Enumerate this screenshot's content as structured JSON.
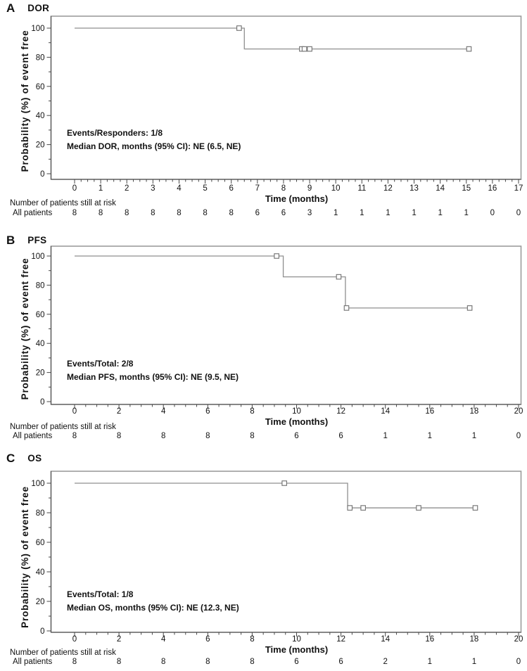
{
  "figure_title": "Kaplan-Meier plots",
  "colors": {
    "curve": "#8f8f8f",
    "censor_stroke": "#6f6f6f",
    "censor_fill": "#ffffff",
    "frame": "#9c9c9c",
    "axis": "#4a4a4a",
    "text": "#111111",
    "background": "#ffffff"
  },
  "chart_data": [
    {
      "type": "line",
      "subtype": "kaplan-meier-step",
      "panel_letter": "A",
      "panel_label": "DOR",
      "xlabel": "Time (months)",
      "ylabel": "Probability (%) of event free",
      "xlim": [
        0,
        17
      ],
      "ylim": [
        0,
        100
      ],
      "xticks": [
        0,
        1,
        2,
        3,
        4,
        5,
        6,
        7,
        8,
        9,
        10,
        11,
        12,
        13,
        14,
        15,
        16,
        17
      ],
      "x_minor_step": 0.25,
      "yticks": [
        0,
        20,
        40,
        60,
        80,
        100
      ],
      "y_minor_step": 10,
      "grid": false,
      "legend": "none",
      "series": [
        {
          "name": "All patients",
          "steps": [
            [
              0,
              100
            ],
            [
              6.5,
              100
            ],
            [
              6.5,
              85.7
            ],
            [
              15.1,
              85.7
            ]
          ],
          "censor_marks": [
            [
              6.3,
              100
            ],
            [
              8.7,
              85.7
            ],
            [
              8.8,
              85.7
            ],
            [
              9.0,
              85.7
            ],
            [
              15.1,
              85.7
            ]
          ]
        }
      ],
      "annotation_lines": [
        "Events/Responders: 1/8",
        "Median DOR, months (95% CI): NE (6.5, NE)"
      ],
      "risk_table": {
        "title": "Number of patients still at risk",
        "row_label": "All patients",
        "times": [
          0,
          1,
          2,
          3,
          4,
          5,
          6,
          7,
          8,
          9,
          10,
          11,
          12,
          13,
          14,
          15,
          16,
          17
        ],
        "values": [
          "8",
          "8",
          "8",
          "8",
          "8",
          "8",
          "8",
          "6",
          "6",
          "3",
          "1",
          "1",
          "1",
          "1",
          "1",
          "1",
          "0",
          "0"
        ]
      }
    },
    {
      "type": "line",
      "subtype": "kaplan-meier-step",
      "panel_letter": "B",
      "panel_label": "PFS",
      "xlabel": "Time (months)",
      "ylabel": "Probability (%) of event free",
      "xlim": [
        0,
        20
      ],
      "ylim": [
        0,
        100
      ],
      "xticks": [
        0,
        2,
        4,
        6,
        8,
        10,
        12,
        14,
        16,
        18,
        20
      ],
      "x_minor_step": 0.5,
      "yticks": [
        0,
        20,
        40,
        60,
        80,
        100
      ],
      "y_minor_step": 10,
      "grid": false,
      "legend": "none",
      "series": [
        {
          "name": "All patients",
          "steps": [
            [
              0,
              100
            ],
            [
              9.4,
              100
            ],
            [
              9.4,
              85.7
            ],
            [
              12.2,
              85.7
            ],
            [
              12.2,
              64.3
            ],
            [
              17.8,
              64.3
            ]
          ],
          "censor_marks": [
            [
              9.1,
              100
            ],
            [
              11.9,
              85.7
            ],
            [
              12.25,
              64.3
            ],
            [
              17.8,
              64.3
            ]
          ]
        }
      ],
      "annotation_lines": [
        "Events/Total: 2/8",
        "Median PFS, months (95% CI): NE (9.5, NE)"
      ],
      "risk_table": {
        "title": "Number of patients still at risk",
        "row_label": "All patients",
        "times": [
          0,
          2,
          4,
          6,
          8,
          10,
          12,
          14,
          16,
          18,
          20
        ],
        "values": [
          "8",
          "8",
          "8",
          "8",
          "8",
          "6",
          "6",
          "1",
          "1",
          "1",
          "0"
        ]
      }
    },
    {
      "type": "line",
      "subtype": "kaplan-meier-step",
      "panel_letter": "C",
      "panel_label": "OS",
      "xlabel": "Time (months)",
      "ylabel": "Probability (%) of event free",
      "xlim": [
        0,
        20
      ],
      "ylim": [
        0,
        100
      ],
      "xticks": [
        0,
        2,
        4,
        6,
        8,
        10,
        12,
        14,
        16,
        18,
        20
      ],
      "x_minor_step": 0.5,
      "yticks": [
        0,
        20,
        40,
        60,
        80,
        100
      ],
      "y_minor_step": 10,
      "grid": false,
      "legend": "none",
      "series": [
        {
          "name": "All patients",
          "steps": [
            [
              0,
              100
            ],
            [
              12.3,
              100
            ],
            [
              12.3,
              83.3
            ],
            [
              18.05,
              83.3
            ]
          ],
          "censor_marks": [
            [
              9.45,
              100
            ],
            [
              12.4,
              83.3
            ],
            [
              13.0,
              83.3
            ],
            [
              15.5,
              83.3
            ],
            [
              18.05,
              83.3
            ]
          ]
        }
      ],
      "annotation_lines": [
        "Events/Total: 1/8",
        "Median OS, months (95% CI): NE (12.3, NE)"
      ],
      "risk_table": {
        "title": "Number of patients still at risk",
        "row_label": "All patients",
        "times": [
          0,
          2,
          4,
          6,
          8,
          10,
          12,
          14,
          16,
          18,
          20
        ],
        "values": [
          "8",
          "8",
          "8",
          "8",
          "8",
          "6",
          "6",
          "2",
          "1",
          "1",
          "0"
        ]
      }
    }
  ]
}
